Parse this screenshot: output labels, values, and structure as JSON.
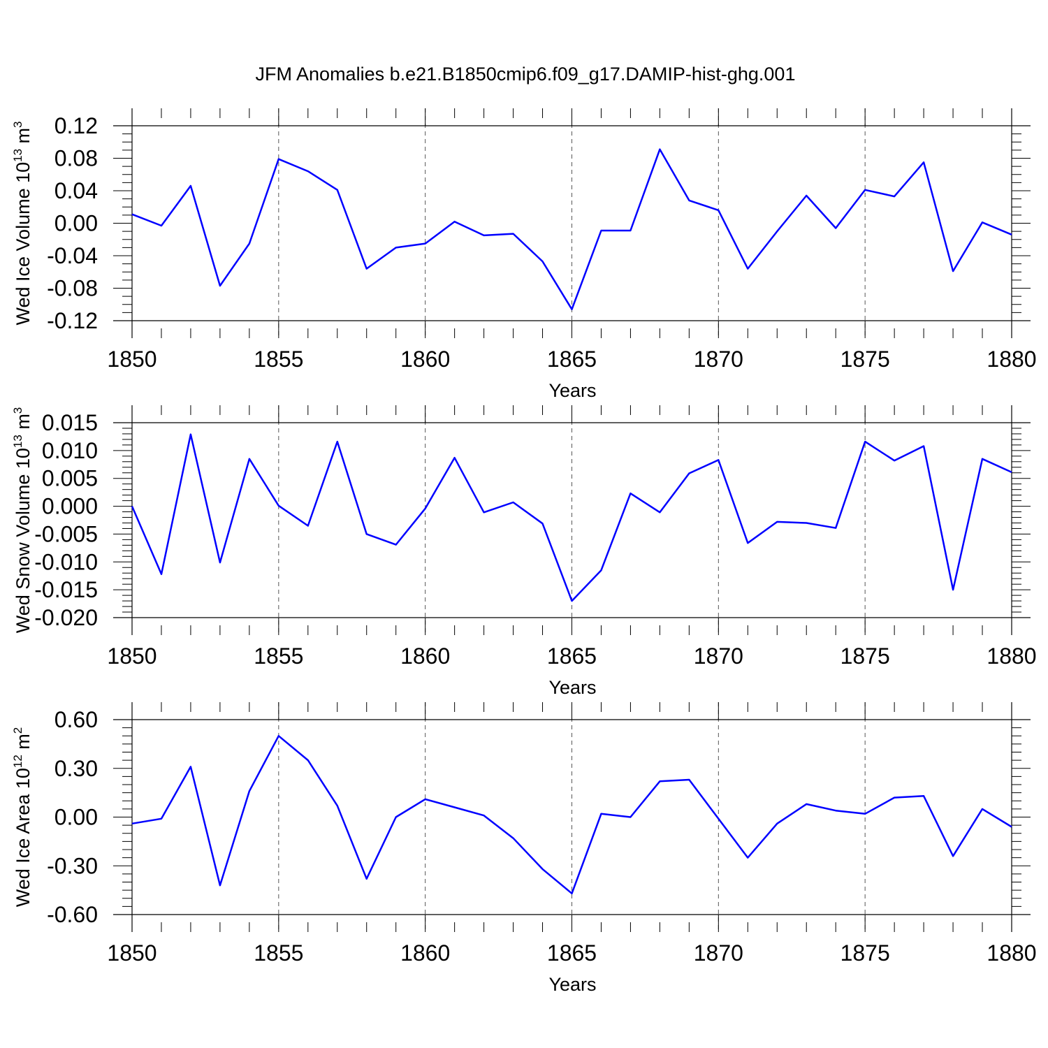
{
  "title": "JFM Anomalies b.e21.B1850cmip6.f09_g17.DAMIP-hist-ghg.001",
  "colors": {
    "line": "#0000ff",
    "axis": "#000000",
    "grid": "#555555"
  },
  "chart_data": [
    {
      "type": "line",
      "ylabel": {
        "text": "Wed Ice Volume 10",
        "exp": "13",
        "unit": " m",
        "unit_exp": "3"
      },
      "xlabel": "Years",
      "xlim": [
        1850,
        1880
      ],
      "ylim": [
        -0.12,
        0.12
      ],
      "xticks": [
        "1850",
        "1855",
        "1860",
        "1865",
        "1870",
        "1875",
        "1880"
      ],
      "yticks": [
        "0.12",
        "0.08",
        "0.04",
        "0.00",
        "-0.04",
        "-0.08",
        "-0.12"
      ],
      "grid": "vertical dashed at major x ticks",
      "series": [
        {
          "x": [
            1850,
            1851,
            1852,
            1853,
            1854,
            1855,
            1856,
            1857,
            1858,
            1859,
            1860,
            1861,
            1862,
            1863,
            1864,
            1865,
            1866,
            1867,
            1868,
            1869,
            1870,
            1871,
            1872,
            1873,
            1874,
            1875,
            1876,
            1877,
            1878,
            1879,
            1880
          ],
          "values": [
            0.011,
            -0.003,
            0.046,
            -0.077,
            -0.025,
            0.079,
            0.064,
            0.041,
            -0.056,
            -0.03,
            -0.025,
            0.002,
            -0.015,
            -0.013,
            -0.047,
            -0.106,
            -0.009,
            -0.009,
            0.091,
            0.028,
            0.016,
            -0.056,
            -0.01,
            0.034,
            -0.006,
            0.041,
            0.033,
            0.075,
            -0.059,
            0.001,
            -0.014
          ]
        }
      ]
    },
    {
      "type": "line",
      "ylabel": {
        "text": "Wed Snow Volume 10",
        "exp": "13",
        "unit": " m",
        "unit_exp": "3"
      },
      "xlabel": "Years",
      "xlim": [
        1850,
        1880
      ],
      "ylim": [
        -0.02,
        0.015
      ],
      "xticks": [
        "1850",
        "1855",
        "1860",
        "1865",
        "1870",
        "1875",
        "1880"
      ],
      "yticks": [
        "0.015",
        "0.010",
        "0.005",
        "0.000",
        "-0.005",
        "-0.010",
        "-0.015",
        "-0.020"
      ],
      "grid": "vertical dashed at major x ticks",
      "series": [
        {
          "x": [
            1850,
            1851,
            1852,
            1853,
            1854,
            1855,
            1856,
            1857,
            1858,
            1859,
            1860,
            1861,
            1862,
            1863,
            1864,
            1865,
            1866,
            1867,
            1868,
            1869,
            1870,
            1871,
            1872,
            1873,
            1874,
            1875,
            1876,
            1877,
            1878,
            1879,
            1880
          ],
          "values": [
            0.0,
            -0.0122,
            0.0129,
            -0.0101,
            0.0085,
            0.0001,
            -0.0035,
            0.0116,
            -0.005,
            -0.0069,
            -0.0004,
            0.0087,
            -0.0011,
            0.0007,
            -0.0031,
            -0.017,
            -0.0115,
            0.0023,
            -0.0011,
            0.0059,
            0.0083,
            -0.0066,
            -0.0028,
            -0.003,
            -0.0039,
            0.0116,
            0.0082,
            0.0108,
            -0.015,
            0.0085,
            0.0061
          ]
        }
      ]
    },
    {
      "type": "line",
      "ylabel": {
        "text": "Wed Ice Area 10",
        "exp": "12",
        "unit": " m",
        "unit_exp": "2"
      },
      "xlabel": "Years",
      "xlim": [
        1850,
        1880
      ],
      "ylim": [
        -0.6,
        0.6
      ],
      "xticks": [
        "1850",
        "1855",
        "1860",
        "1865",
        "1870",
        "1875",
        "1880"
      ],
      "yticks": [
        "0.60",
        "0.30",
        "0.00",
        "-0.30",
        "-0.60"
      ],
      "grid": "vertical dashed at major x ticks",
      "series": [
        {
          "x": [
            1850,
            1851,
            1852,
            1853,
            1854,
            1855,
            1856,
            1857,
            1858,
            1859,
            1860,
            1861,
            1862,
            1863,
            1864,
            1865,
            1866,
            1867,
            1868,
            1869,
            1870,
            1871,
            1872,
            1873,
            1874,
            1875,
            1876,
            1877,
            1878,
            1879,
            1880
          ],
          "values": [
            -0.04,
            -0.01,
            0.31,
            -0.42,
            0.16,
            0.5,
            0.35,
            0.07,
            -0.38,
            0.0,
            0.11,
            0.06,
            0.01,
            -0.13,
            -0.32,
            -0.47,
            0.02,
            0.0,
            0.22,
            0.23,
            -0.01,
            -0.25,
            -0.04,
            0.08,
            0.04,
            0.02,
            0.12,
            0.13,
            -0.24,
            0.05,
            -0.06
          ]
        }
      ]
    }
  ]
}
